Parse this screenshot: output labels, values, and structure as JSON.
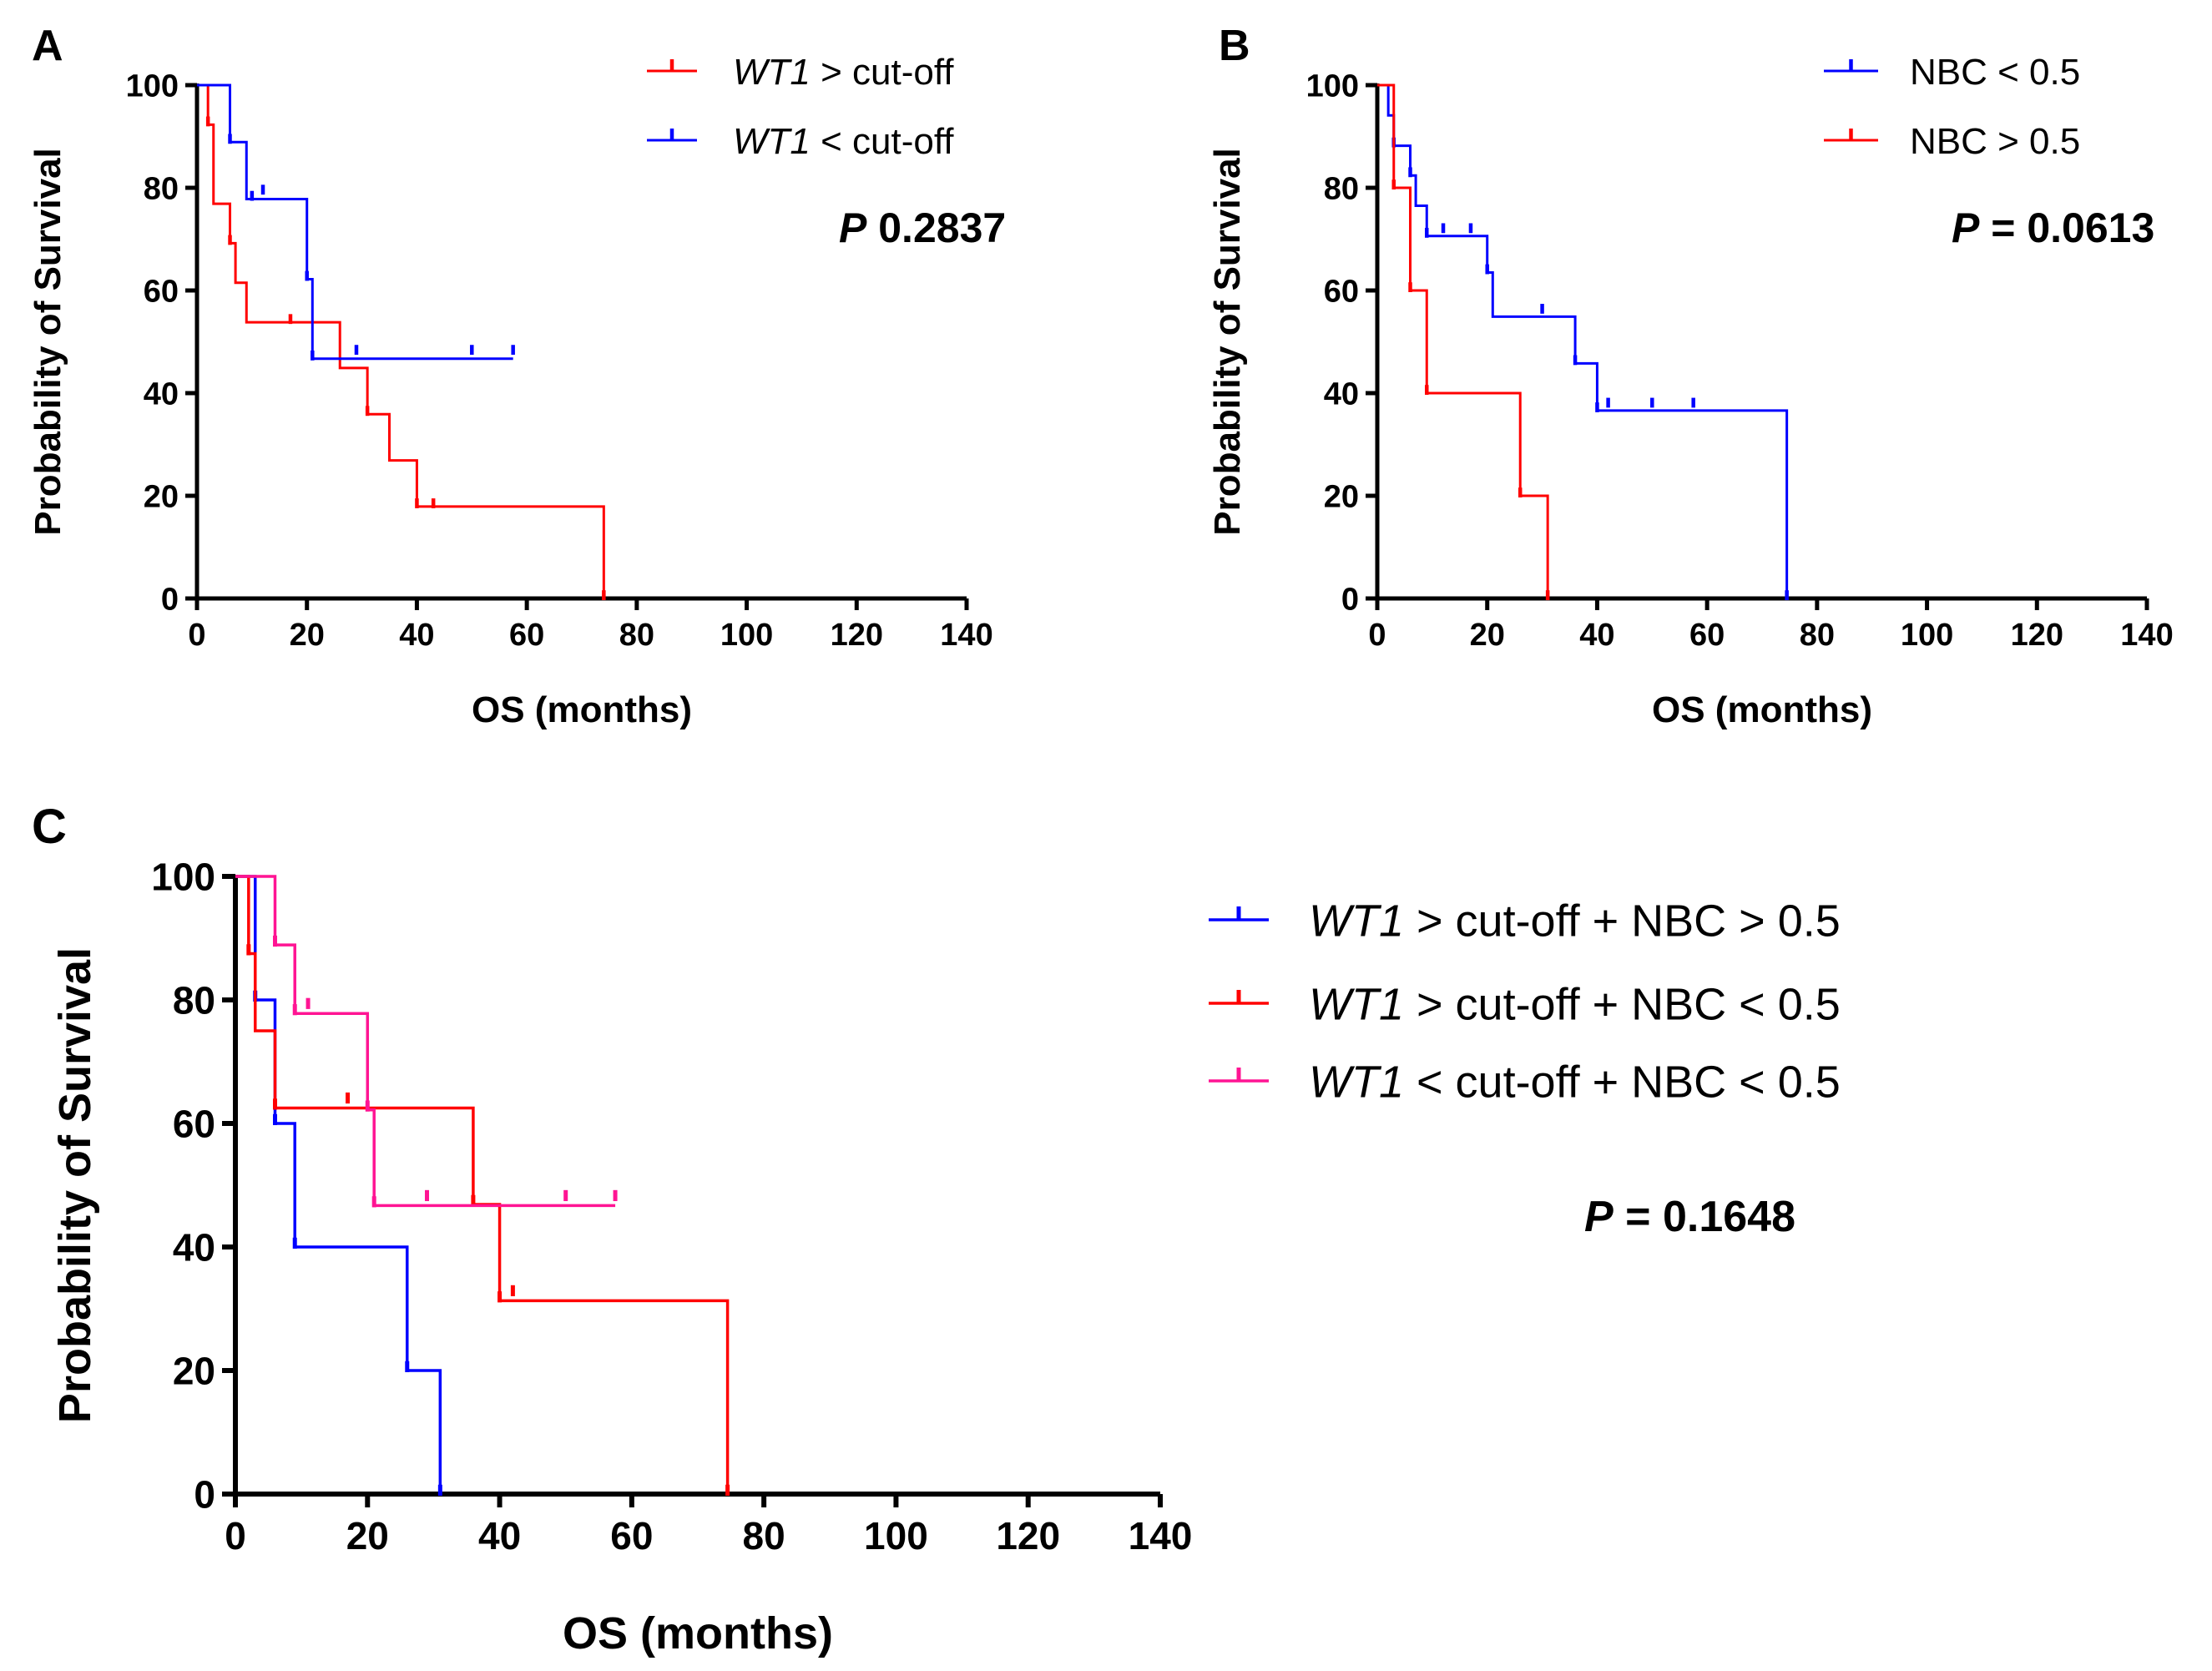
{
  "chart_data": [
    {
      "panel_label": "A",
      "type": "line",
      "subtype": "kaplan-meier",
      "xlabel": "OS (months)",
      "ylabel": "Probability of Survival",
      "xlim": [
        0,
        140
      ],
      "ylim": [
        0,
        100
      ],
      "x_ticks": [
        0,
        20,
        40,
        60,
        80,
        100,
        120,
        140
      ],
      "y_ticks": [
        0,
        20,
        40,
        60,
        80,
        100
      ],
      "legend_position": "top-right",
      "annotation": {
        "italic": "P",
        "rest": " 0.2837"
      },
      "series": [
        {
          "name_italic": "WT1",
          "name_rest": " > cut-off",
          "color": "#ff0000",
          "steps": [
            [
              0,
              100
            ],
            [
              2,
              92.3
            ],
            [
              3,
              76.9
            ],
            [
              6,
              69.2
            ],
            [
              7,
              61.5
            ],
            [
              9,
              53.8
            ],
            [
              26,
              44.9
            ],
            [
              31,
              35.9
            ],
            [
              35,
              26.9
            ],
            [
              40,
              17.9
            ],
            [
              74,
              0
            ]
          ],
          "end": 74,
          "censored": [
            [
              2,
              92.3
            ],
            [
              6,
              69.2
            ],
            [
              17,
              53.8
            ],
            [
              31,
              35.9
            ],
            [
              40,
              17.9
            ],
            [
              43,
              17.9
            ],
            [
              74,
              0
            ]
          ]
        },
        {
          "name_italic": "WT1",
          "name_rest": " < cut-off",
          "color": "#0000ff",
          "steps": [
            [
              0,
              100
            ],
            [
              6,
              88.9
            ],
            [
              9,
              77.8
            ],
            [
              20,
              62.2
            ],
            [
              21,
              46.7
            ]
          ],
          "end": 57.5,
          "censored": [
            [
              6,
              88.9
            ],
            [
              10,
              77.8
            ],
            [
              12,
              79
            ],
            [
              20,
              62.2
            ],
            [
              21,
              46.7
            ],
            [
              29,
              47.8
            ],
            [
              50,
              47.8
            ],
            [
              57.5,
              47.8
            ]
          ]
        }
      ]
    },
    {
      "panel_label": "B",
      "type": "line",
      "subtype": "kaplan-meier",
      "xlabel": "OS (months)",
      "ylabel": "Probability of Survival",
      "xlim": [
        0,
        140
      ],
      "ylim": [
        0,
        100
      ],
      "x_ticks": [
        0,
        20,
        40,
        60,
        80,
        100,
        120,
        140
      ],
      "y_ticks": [
        0,
        20,
        40,
        60,
        80,
        100
      ],
      "legend_position": "top-right",
      "annotation": {
        "italic": "P",
        "rest": " = 0.0613"
      },
      "series": [
        {
          "name_italic": "",
          "name_rest": "NBC < 0.5",
          "color": "#0000ff",
          "steps": [
            [
              0,
              100
            ],
            [
              2,
              94.1
            ],
            [
              3,
              88.2
            ],
            [
              6,
              82.4
            ],
            [
              7,
              76.5
            ],
            [
              9,
              70.6
            ],
            [
              20,
              63.5
            ],
            [
              21,
              54.9
            ],
            [
              36,
              45.8
            ],
            [
              40,
              36.6
            ],
            [
              74.5,
              0
            ]
          ],
          "end": 74.5,
          "censored": [
            [
              3,
              88.2
            ],
            [
              6,
              82.4
            ],
            [
              9,
              70.6
            ],
            [
              12,
              71.5
            ],
            [
              17,
              71.5
            ],
            [
              20,
              63.5
            ],
            [
              30,
              55.8
            ],
            [
              36,
              45.8
            ],
            [
              40,
              36.6
            ],
            [
              42,
              37.5
            ],
            [
              50,
              37.5
            ],
            [
              57.5,
              37.5
            ],
            [
              74.5,
              0
            ]
          ]
        },
        {
          "name_italic": "",
          "name_rest": "NBC > 0.5",
          "color": "#ff0000",
          "steps": [
            [
              0,
              100
            ],
            [
              3,
              80
            ],
            [
              6,
              60
            ],
            [
              9,
              40
            ],
            [
              26,
              20
            ],
            [
              31,
              0
            ]
          ],
          "end": 31,
          "censored": [
            [
              3,
              80
            ],
            [
              6,
              60
            ],
            [
              9,
              40
            ],
            [
              26,
              20
            ],
            [
              31,
              0
            ]
          ]
        }
      ]
    },
    {
      "panel_label": "C",
      "type": "line",
      "subtype": "kaplan-meier",
      "xlabel": "OS (months)",
      "ylabel": "Probability of Survival",
      "xlim": [
        0,
        140
      ],
      "ylim": [
        0,
        100
      ],
      "x_ticks": [
        0,
        20,
        40,
        60,
        80,
        100,
        120,
        140
      ],
      "y_ticks": [
        0,
        20,
        40,
        60,
        80,
        100
      ],
      "legend_position": "right",
      "annotation": {
        "italic": "P",
        "rest": " = 0.1648"
      },
      "series": [
        {
          "name_italic": "WT1",
          "name_rest": " > cut-off + NBC > 0.5",
          "color": "#0000ff",
          "steps": [
            [
              0,
              100
            ],
            [
              3,
              80
            ],
            [
              6,
              60
            ],
            [
              9,
              40
            ],
            [
              26,
              20
            ],
            [
              31,
              0
            ]
          ],
          "end": 31,
          "censored": [
            [
              3,
              80
            ],
            [
              6,
              60
            ],
            [
              9,
              40
            ],
            [
              26,
              20
            ],
            [
              31,
              0
            ]
          ]
        },
        {
          "name_italic": "WT1",
          "name_rest": " > cut-off + NBC < 0.5",
          "color": "#ff0000",
          "steps": [
            [
              0,
              100
            ],
            [
              2,
              87.5
            ],
            [
              3,
              75
            ],
            [
              6,
              62.5
            ],
            [
              36,
              46.9
            ],
            [
              40,
              31.3
            ],
            [
              74.5,
              0
            ]
          ],
          "end": 74.5,
          "censored": [
            [
              2,
              87.5
            ],
            [
              6,
              62.5
            ],
            [
              17,
              63.5
            ],
            [
              36,
              46.9
            ],
            [
              40,
              31.3
            ],
            [
              42,
              32.3
            ],
            [
              74.5,
              0
            ]
          ]
        },
        {
          "name_italic": "WT1",
          "name_rest": " < cut-off + NBC < 0.5",
          "color": "#ff1493",
          "steps": [
            [
              0,
              100
            ],
            [
              6,
              88.9
            ],
            [
              9,
              77.8
            ],
            [
              20,
              62.2
            ],
            [
              21,
              46.7
            ]
          ],
          "end": 57.5,
          "censored": [
            [
              6,
              88.9
            ],
            [
              9,
              77.8
            ],
            [
              11,
              78.8
            ],
            [
              20,
              62.2
            ],
            [
              21,
              46.7
            ],
            [
              29,
              47.7
            ],
            [
              50,
              47.7
            ],
            [
              57.5,
              47.7
            ]
          ]
        }
      ]
    }
  ]
}
